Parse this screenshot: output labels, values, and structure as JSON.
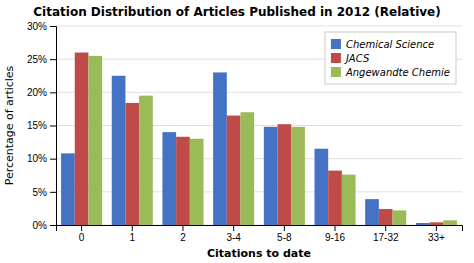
{
  "chart_data": {
    "type": "bar",
    "title": "Citation Distribution of Articles Published in 2012 (Relative)",
    "xlabel": "Citations to date",
    "ylabel": "Percentage of articles",
    "categories": [
      "0",
      "1",
      "2",
      "3-4",
      "5-8",
      "9-16",
      "17-32",
      "33+"
    ],
    "series": [
      {
        "name": "Chemical Science",
        "color": "#4472C4",
        "values": [
          10.8,
          22.5,
          14.0,
          23.0,
          14.8,
          11.5,
          3.9,
          0.3
        ]
      },
      {
        "name": "JACS",
        "color": "#BE4B48",
        "values": [
          26.0,
          18.4,
          13.3,
          16.5,
          15.2,
          8.2,
          2.4,
          0.4
        ]
      },
      {
        "name": "Angewandte Chemie",
        "color": "#9BBB59",
        "values": [
          25.5,
          19.5,
          13.0,
          17.0,
          14.8,
          7.6,
          2.2,
          0.7
        ]
      }
    ],
    "ylim": [
      0,
      30
    ],
    "yticks": [
      {
        "value": 0,
        "label": "0%"
      },
      {
        "value": 5,
        "label": "5%"
      },
      {
        "value": 10,
        "label": "10%"
      },
      {
        "value": 15,
        "label": "15%"
      },
      {
        "value": 20,
        "label": "20%"
      },
      {
        "value": 25,
        "label": "25%"
      },
      {
        "value": 30,
        "label": "30%"
      }
    ],
    "grid": true,
    "legend": "upper right"
  }
}
